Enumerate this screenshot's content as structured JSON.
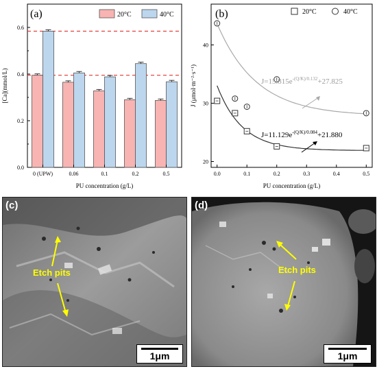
{
  "panel_a": {
    "label": "(a)",
    "legend": [
      "20°C",
      "40°C"
    ],
    "colors": {
      "c20": "#f8b4b2",
      "c40": "#bcd6ee",
      "border": "#555555",
      "dashed": "#e2322f"
    },
    "ylabel": "[Ca](mmol/L)",
    "xlabel": "PU concentration (g/L)",
    "yticks": [
      "0.0",
      "0.2",
      "0.4",
      "0.6"
    ]
  },
  "panel_b": {
    "label": "(b)",
    "legend": [
      "20°C",
      "40°C"
    ],
    "ylabel": "J (μmol·m⁻²·s⁻¹)",
    "xlabel": "PU concentration (g/L)",
    "yticks": [
      "20",
      "30",
      "40"
    ],
    "xticks": [
      "0.0",
      "0.1",
      "0.2",
      "0.3",
      "0.4",
      "0.5"
    ],
    "eq40_prefix": "J=15.815e",
    "eq40_sup": "-(Q/K)/0.132",
    "eq40_suffix": "+27.825",
    "eq20_prefix": "J=11.129e",
    "eq20_sup": "-(Q/K)/0.084",
    "eq20_suffix": "+21.880",
    "colors": {
      "fit40": "#a9a9a9",
      "fit20": "#333333",
      "eq40": "#9a9a9a",
      "eq20": "#000000"
    }
  },
  "panel_c": {
    "label": "(c)",
    "annotation": "Etch pits",
    "scale": "1μm"
  },
  "panel_d": {
    "label": "(d)",
    "annotation": "Etch pits",
    "scale": "1μm"
  },
  "chart_data": [
    {
      "type": "bar",
      "categories": [
        "0 (UPW)",
        "0.06",
        "0.1",
        "0.2",
        "0.5"
      ],
      "series": [
        {
          "name": "20°C",
          "values": [
            0.395,
            0.365,
            0.328,
            0.29,
            0.287
          ]
        },
        {
          "name": "40°C",
          "values": [
            0.584,
            0.405,
            0.388,
            0.445,
            0.367
          ]
        }
      ],
      "reference_lines": [
        0.584,
        0.395
      ],
      "ylim": [
        0,
        0.7
      ],
      "title": "",
      "xlabel": "PU concentration (g/L)",
      "ylabel": "[Ca](mmol/L)",
      "grid": false,
      "legend": "top"
    },
    {
      "type": "scatter",
      "x": [
        0,
        0.06,
        0.1,
        0.2,
        0.5
      ],
      "series": [
        {
          "name": "20°C",
          "values": [
            30.4,
            28.3,
            25.2,
            22.6,
            22.3
          ]
        },
        {
          "name": "40°C",
          "values": [
            43.7,
            30.8,
            29.4,
            34.1,
            28.3
          ]
        }
      ],
      "xlim": [
        -0.02,
        0.52
      ],
      "ylim": [
        19,
        47
      ],
      "title": "",
      "xlabel": "PU concentration (g/L)",
      "ylabel": "J (μmol·m⁻²·s⁻¹)",
      "grid": false,
      "legend": "top-right"
    }
  ]
}
